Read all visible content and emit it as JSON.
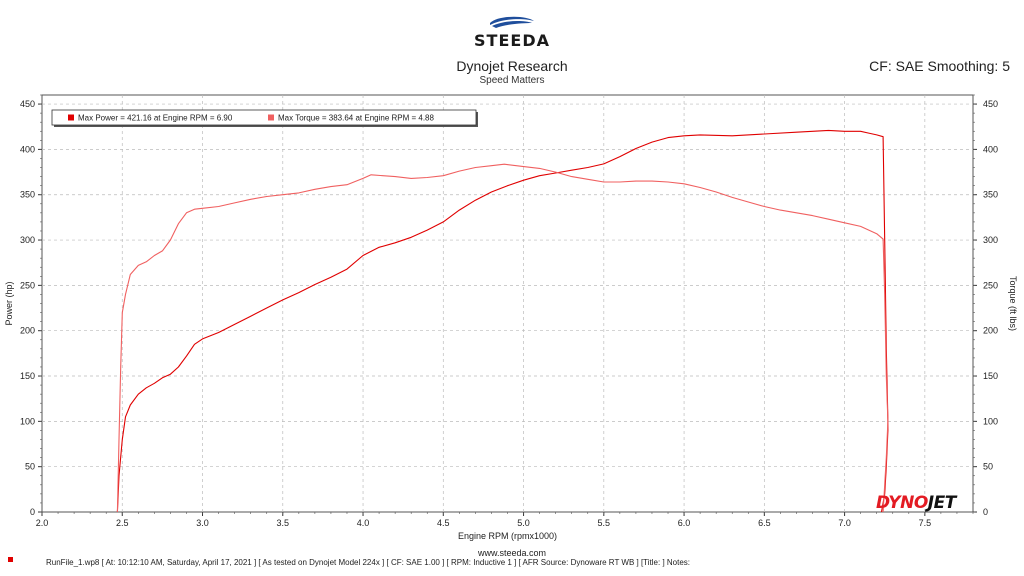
{
  "header": {
    "logo_text": "STEEDA",
    "title": "Dynojet Research",
    "subtitle": "Speed Matters",
    "cf_text": "CF: SAE Smoothing: 5"
  },
  "footer": {
    "url": "www.steeda.com",
    "note": "RunFile_1.wp8 [ At: 10:12:10 AM, Saturday, April 17, 2021 ] [ As tested on Dynojet Model 224x ] [ CF: SAE 1.00 ] [ RPM: Inductive 1 ] [ AFR Source: Dynoware RT WB ] [Title: ]  Notes:",
    "marker_color": "#e00000"
  },
  "watermark": {
    "part1": "DYNO",
    "part2": "JET"
  },
  "chart_data": {
    "type": "line",
    "title": "Dynojet Research",
    "subtitle": "Speed Matters",
    "xlabel": "Engine RPM (rpmx1000)",
    "ylabel_left": "Power (hp)",
    "ylabel_right": "Torque (ft lbs)",
    "xlim": [
      2.0,
      7.8
    ],
    "ylim": [
      0,
      460
    ],
    "x_ticks": [
      "2.0",
      "2.5",
      "3.0",
      "3.5",
      "4.0",
      "4.5",
      "5.0",
      "5.5",
      "6.0",
      "6.5",
      "7.0",
      "7.5"
    ],
    "y_ticks": [
      "0",
      "50",
      "100",
      "150",
      "200",
      "250",
      "300",
      "350",
      "400",
      "450"
    ],
    "grid": true,
    "legend": {
      "position": "top-left",
      "entries": [
        {
          "label": "Max Power = 421.16 at Engine RPM = 6.90",
          "color": "#e00000"
        },
        {
          "label": "Max Torque = 383.64 at Engine RPM = 4.88",
          "color": "#f06060"
        }
      ]
    },
    "series": [
      {
        "name": "Power",
        "color": "#e00000",
        "points": [
          [
            2.47,
            0
          ],
          [
            2.48,
            40
          ],
          [
            2.5,
            80
          ],
          [
            2.52,
            105
          ],
          [
            2.55,
            118
          ],
          [
            2.6,
            130
          ],
          [
            2.65,
            137
          ],
          [
            2.7,
            142
          ],
          [
            2.75,
            148
          ],
          [
            2.8,
            152
          ],
          [
            2.85,
            160
          ],
          [
            2.9,
            172
          ],
          [
            2.95,
            185
          ],
          [
            3.0,
            191
          ],
          [
            3.1,
            198
          ],
          [
            3.2,
            207
          ],
          [
            3.3,
            216
          ],
          [
            3.4,
            225
          ],
          [
            3.5,
            234
          ],
          [
            3.6,
            242
          ],
          [
            3.7,
            251
          ],
          [
            3.8,
            259
          ],
          [
            3.9,
            268
          ],
          [
            4.0,
            283
          ],
          [
            4.1,
            292
          ],
          [
            4.2,
            297
          ],
          [
            4.3,
            303
          ],
          [
            4.4,
            311
          ],
          [
            4.5,
            320
          ],
          [
            4.6,
            333
          ],
          [
            4.7,
            344
          ],
          [
            4.8,
            353
          ],
          [
            4.9,
            360
          ],
          [
            5.0,
            366
          ],
          [
            5.1,
            371
          ],
          [
            5.2,
            374
          ],
          [
            5.3,
            377
          ],
          [
            5.4,
            380
          ],
          [
            5.5,
            384
          ],
          [
            5.6,
            392
          ],
          [
            5.7,
            401
          ],
          [
            5.8,
            408
          ],
          [
            5.9,
            413
          ],
          [
            6.0,
            415
          ],
          [
            6.1,
            416
          ],
          [
            6.3,
            415
          ],
          [
            6.5,
            417
          ],
          [
            6.7,
            419
          ],
          [
            6.9,
            421
          ],
          [
            7.0,
            420
          ],
          [
            7.1,
            420
          ],
          [
            7.15,
            418
          ],
          [
            7.2,
            416
          ],
          [
            7.24,
            414
          ],
          [
            7.25,
            300
          ],
          [
            7.26,
            180
          ],
          [
            7.27,
            100
          ],
          [
            7.27,
            90
          ],
          [
            7.26,
            50
          ],
          [
            7.25,
            20
          ],
          [
            7.23,
            0
          ]
        ]
      },
      {
        "name": "Torque",
        "color": "#f06060",
        "points": [
          [
            2.47,
            0
          ],
          [
            2.48,
            80
          ],
          [
            2.49,
            160
          ],
          [
            2.5,
            220
          ],
          [
            2.52,
            240
          ],
          [
            2.55,
            262
          ],
          [
            2.6,
            272
          ],
          [
            2.65,
            276
          ],
          [
            2.7,
            283
          ],
          [
            2.75,
            288
          ],
          [
            2.8,
            300
          ],
          [
            2.85,
            318
          ],
          [
            2.9,
            330
          ],
          [
            2.95,
            334
          ],
          [
            3.0,
            335
          ],
          [
            3.1,
            337
          ],
          [
            3.2,
            341
          ],
          [
            3.3,
            345
          ],
          [
            3.4,
            348
          ],
          [
            3.5,
            350
          ],
          [
            3.6,
            352
          ],
          [
            3.7,
            356
          ],
          [
            3.8,
            359
          ],
          [
            3.9,
            361
          ],
          [
            4.0,
            368
          ],
          [
            4.05,
            372
          ],
          [
            4.2,
            370
          ],
          [
            4.3,
            368
          ],
          [
            4.4,
            369
          ],
          [
            4.5,
            371
          ],
          [
            4.6,
            376
          ],
          [
            4.7,
            380
          ],
          [
            4.8,
            382
          ],
          [
            4.88,
            383.64
          ],
          [
            5.0,
            381
          ],
          [
            5.1,
            379
          ],
          [
            5.2,
            375
          ],
          [
            5.3,
            370
          ],
          [
            5.4,
            367
          ],
          [
            5.5,
            364
          ],
          [
            5.6,
            364
          ],
          [
            5.7,
            365
          ],
          [
            5.8,
            365
          ],
          [
            5.9,
            364
          ],
          [
            6.0,
            362
          ],
          [
            6.1,
            358
          ],
          [
            6.2,
            353
          ],
          [
            6.3,
            347
          ],
          [
            6.4,
            342
          ],
          [
            6.5,
            337
          ],
          [
            6.6,
            333
          ],
          [
            6.7,
            330
          ],
          [
            6.8,
            327
          ],
          [
            6.9,
            323
          ],
          [
            7.0,
            319
          ],
          [
            7.1,
            315
          ],
          [
            7.2,
            307
          ],
          [
            7.24,
            301
          ],
          [
            7.25,
            240
          ],
          [
            7.26,
            150
          ],
          [
            7.27,
            100
          ],
          [
            7.26,
            60
          ],
          [
            7.25,
            30
          ],
          [
            7.24,
            0
          ]
        ]
      }
    ]
  }
}
